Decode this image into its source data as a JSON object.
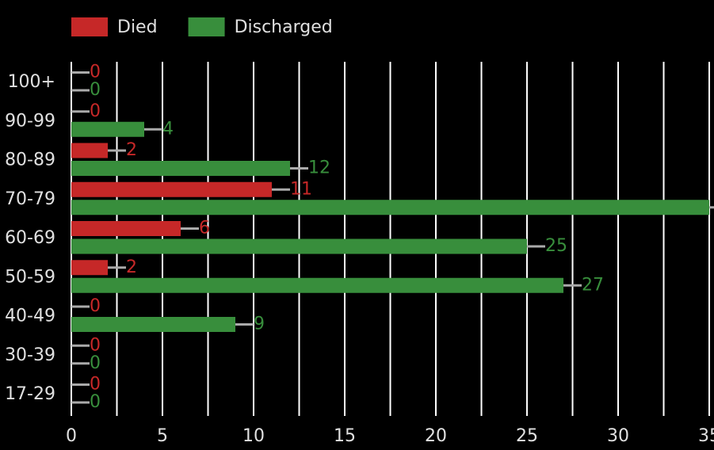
{
  "chart_data": {
    "type": "hbar",
    "categories": [
      "100+",
      "90-99",
      "80-89",
      "70-79",
      "60-69",
      "50-59",
      "40-49",
      "30-39",
      "17-29"
    ],
    "series": [
      {
        "name": "Died",
        "color": "#c62828",
        "values": [
          0,
          0,
          2,
          11,
          6,
          2,
          0,
          0,
          0
        ]
      },
      {
        "name": "Discharged",
        "color": "#388e3c",
        "values": [
          0,
          4,
          12,
          35,
          25,
          27,
          9,
          0,
          0
        ]
      }
    ],
    "xlim": [
      0,
      35.26
    ],
    "xticks": [
      0,
      5,
      10,
      15,
      20,
      25,
      30,
      35
    ],
    "xgrid": [
      2.5,
      5,
      7.5,
      10,
      12.5,
      15,
      17.5,
      20,
      22.5,
      25,
      27.5,
      30,
      32.5,
      35
    ],
    "grid": true,
    "legend": "top"
  }
}
